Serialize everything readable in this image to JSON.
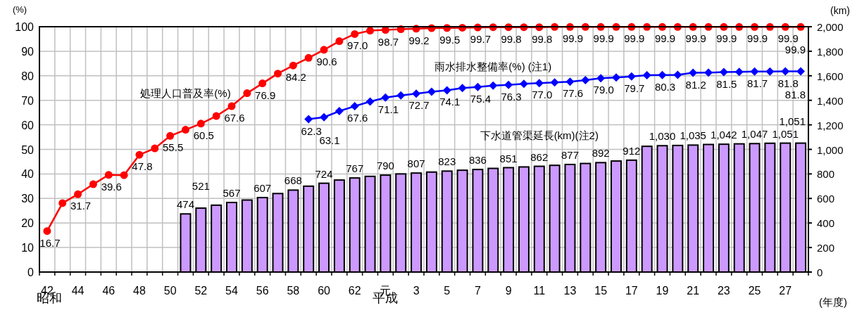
{
  "chart_data": {
    "type": "line",
    "xlabel": "(年度)",
    "ylabel": "(%)",
    "y2label": "(km)",
    "categories": [
      "42",
      null,
      "44",
      null,
      "46",
      null,
      "48",
      null,
      "50",
      null,
      "52",
      null,
      "54",
      null,
      "56",
      null,
      "58",
      null,
      "60",
      null,
      "62",
      null,
      "元",
      null,
      "3",
      null,
      "5",
      null,
      "7",
      null,
      "9",
      null,
      "11",
      null,
      "13",
      null,
      "15",
      null,
      "17",
      null,
      "19",
      null,
      "21",
      null,
      "23",
      null,
      "25",
      null,
      "27",
      null
    ],
    "ylim": [
      0,
      100
    ],
    "yticks": [
      0,
      10,
      20,
      30,
      40,
      50,
      60,
      70,
      80,
      90,
      100
    ],
    "y2lim": [
      0,
      2000
    ],
    "y2ticks": [
      0,
      200,
      400,
      600,
      800,
      {
        "value": 1000,
        "label": "1,000"
      },
      {
        "value": 1200,
        "label": "1,200"
      },
      {
        "value": 1400,
        "label": "1,400"
      },
      {
        "value": 1600,
        "label": "1,600"
      },
      {
        "value": 1800,
        "label": "1,800"
      },
      {
        "value": 2000,
        "label": "2,000"
      }
    ],
    "grid": true,
    "annotations": [
      "昭和",
      "平成"
    ],
    "series": [
      {
        "name": "下水道管渠延長(km)(注2)",
        "type": "bar",
        "axis": "y2",
        "color": "#cc99ff",
        "values": [
          null,
          null,
          null,
          null,
          null,
          null,
          null,
          null,
          null,
          474,
          521,
          545,
          567,
          587,
          607,
          640,
          668,
          700,
          724,
          750,
          767,
          780,
          790,
          800,
          807,
          815,
          823,
          830,
          836,
          845,
          851,
          857,
          862,
          870,
          877,
          885,
          892,
          905,
          912,
          1025,
          1030,
          1032,
          1035,
          1040,
          1042,
          1045,
          1047,
          1050,
          1051,
          1051
        ],
        "value_labels": [
          null,
          null,
          null,
          null,
          null,
          null,
          null,
          null,
          null,
          "474",
          "521",
          null,
          "567",
          null,
          "607",
          null,
          "668",
          null,
          "724",
          null,
          "767",
          null,
          "790",
          null,
          "807",
          null,
          "823",
          null,
          "836",
          null,
          "851",
          null,
          "862",
          null,
          "877",
          null,
          "892",
          null,
          "912",
          null,
          "1,030",
          null,
          "1,035",
          null,
          "1,042",
          null,
          "1,047",
          null,
          "1,051",
          "1,051"
        ]
      },
      {
        "name": "処理人口普及率(%)",
        "marker": "circle",
        "color": "#ff0000",
        "values": [
          16.7,
          28.1,
          31.7,
          35.8,
          39.6,
          39.5,
          47.8,
          50.4,
          55.5,
          58.0,
          60.5,
          63.6,
          67.6,
          72.9,
          76.9,
          80.9,
          84.2,
          87.3,
          90.6,
          94.1,
          97.0,
          98.4,
          98.7,
          99.0,
          99.2,
          99.4,
          99.5,
          99.6,
          99.7,
          99.8,
          99.8,
          99.8,
          99.8,
          99.9,
          99.9,
          99.9,
          99.9,
          99.9,
          99.9,
          99.9,
          99.9,
          99.9,
          99.9,
          99.9,
          99.9,
          99.9,
          99.9,
          99.9,
          99.9,
          99.9
        ],
        "value_labels": [
          "16.7",
          null,
          "31.7",
          null,
          "39.6",
          null,
          "47.8",
          null,
          "55.5",
          null,
          "60.5",
          null,
          "67.6",
          null,
          "76.9",
          null,
          "84.2",
          null,
          "90.6",
          null,
          "97.0",
          null,
          "98.7",
          null,
          "99.2",
          null,
          "99.5",
          null,
          "99.7",
          null,
          "99.8",
          null,
          "99.8",
          null,
          "99.9",
          null,
          "99.9",
          null,
          "99.9",
          null,
          "99.9",
          null,
          "99.9",
          null,
          "99.9",
          null,
          "99.9",
          null,
          "99.9",
          "99.9"
        ]
      },
      {
        "name": "雨水排水整備率(%) (注1)",
        "marker": "diamond",
        "color": "#0000ff",
        "values": [
          null,
          null,
          null,
          null,
          null,
          null,
          null,
          null,
          null,
          null,
          null,
          null,
          null,
          null,
          null,
          null,
          null,
          62.3,
          63.1,
          65.6,
          67.6,
          69.5,
          71.1,
          72.0,
          72.7,
          73.5,
          74.1,
          75.0,
          75.4,
          76.0,
          76.3,
          76.7,
          77.0,
          77.3,
          77.6,
          78.2,
          79.0,
          79.3,
          79.7,
          80.2,
          80.3,
          80.4,
          81.2,
          81.3,
          81.5,
          81.6,
          81.7,
          81.7,
          81.8,
          81.8
        ],
        "value_labels": [
          null,
          null,
          null,
          null,
          null,
          null,
          null,
          null,
          null,
          null,
          null,
          null,
          null,
          null,
          null,
          null,
          null,
          "62.3",
          "63.1",
          null,
          "67.6",
          null,
          "71.1",
          null,
          "72.7",
          null,
          "74.1",
          null,
          "75.4",
          null,
          "76.3",
          null,
          "77.0",
          null,
          "77.6",
          null,
          "79.0",
          null,
          "79.7",
          null,
          "80.3",
          null,
          "81.2",
          null,
          "81.5",
          null,
          "81.7",
          null,
          "81.8",
          "81.8"
        ]
      }
    ]
  }
}
